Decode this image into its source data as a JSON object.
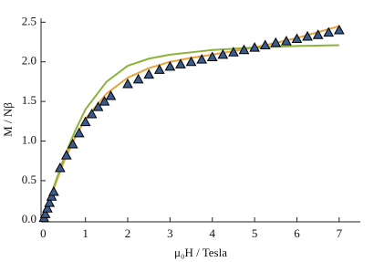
{
  "chart_data": {
    "type": "scatter",
    "x_label": "μ₀H / Tesla",
    "y_label": "M / Nβ",
    "xlim": [
      -0.05,
      7.5
    ],
    "ylim": [
      -0.02,
      2.55
    ],
    "xticks": [
      0,
      1,
      2,
      3,
      4,
      5,
      6,
      7
    ],
    "yticks": [
      {
        "value": 0,
        "label": "0.0"
      },
      0.5,
      {
        "value": 1,
        "label": "1.0"
      },
      1.5,
      {
        "value": 2,
        "label": "2.0"
      },
      2.5
    ],
    "series": [
      {
        "mode": "line",
        "color": "#e8a33a",
        "x": [
          0,
          0.25,
          0.5,
          0.75,
          1,
          1.5,
          2,
          2.5,
          3,
          3.5,
          4,
          5,
          6,
          7
        ],
        "y": [
          0,
          0.4,
          0.75,
          1.04,
          1.28,
          1.6,
          1.8,
          1.92,
          2.0,
          2.05,
          2.09,
          2.18,
          2.3,
          2.45
        ]
      },
      {
        "mode": "line",
        "color": "#8db33a",
        "x": [
          0,
          0.25,
          0.5,
          0.75,
          1,
          1.5,
          2,
          2.5,
          3,
          3.5,
          4,
          5,
          6,
          7
        ],
        "y": [
          0,
          0.42,
          0.8,
          1.12,
          1.4,
          1.75,
          1.95,
          2.04,
          2.09,
          2.12,
          2.15,
          2.18,
          2.2,
          2.21
        ]
      },
      {
        "mode": "markers",
        "color": "#3b5b8c",
        "x": [
          0.02,
          0.05,
          0.1,
          0.15,
          0.2,
          0.25,
          0.4,
          0.55,
          0.7,
          0.85,
          1.0,
          1.15,
          1.3,
          1.45,
          1.6,
          2.0,
          2.25,
          2.5,
          2.75,
          3.0,
          3.25,
          3.5,
          3.75,
          4.0,
          4.25,
          4.5,
          4.75,
          5.0,
          5.25,
          5.5,
          5.75,
          6.0,
          6.25,
          6.5,
          6.75,
          7.0
        ],
        "y": [
          0.03,
          0.08,
          0.15,
          0.22,
          0.3,
          0.36,
          0.66,
          0.82,
          0.96,
          1.1,
          1.24,
          1.34,
          1.43,
          1.5,
          1.57,
          1.72,
          1.78,
          1.84,
          1.9,
          1.94,
          1.97,
          2.0,
          2.03,
          2.06,
          2.09,
          2.12,
          2.15,
          2.18,
          2.21,
          2.24,
          2.26,
          2.29,
          2.32,
          2.34,
          2.37,
          2.4
        ]
      }
    ]
  }
}
